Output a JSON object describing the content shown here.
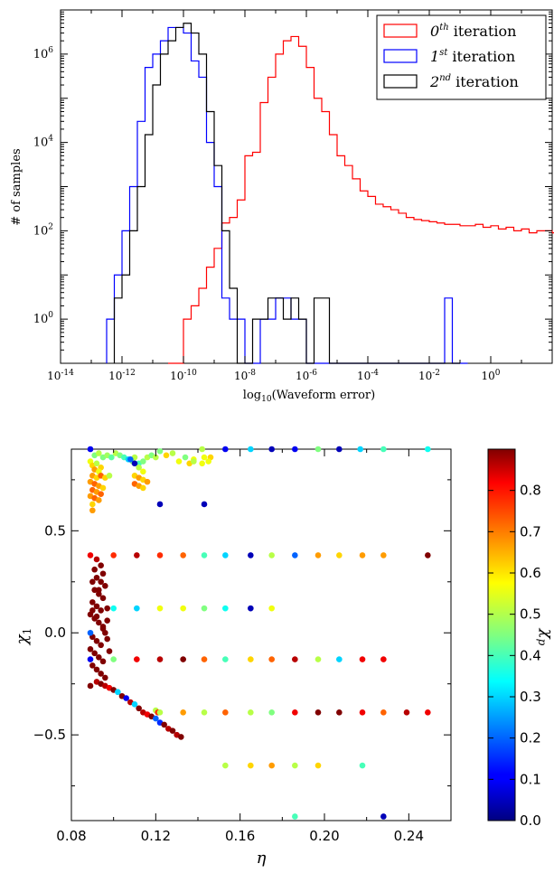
{
  "chart_data": [
    {
      "type": "line",
      "subtype": "step-histogram",
      "xlabel": "log10(Waveform error)",
      "xlabel_parts": {
        "base": "log",
        "sub": "10",
        "rest": "(Waveform error)"
      },
      "ylabel": "# of samples",
      "xscale": "log",
      "yscale": "log",
      "xlim": [
        1e-14,
        100.0
      ],
      "ylim": [
        0.1,
        10000000.0
      ],
      "x_ticks": [
        {
          "b": "10",
          "e": "-14"
        },
        {
          "b": "10",
          "e": "-12"
        },
        {
          "b": "10",
          "e": "-10"
        },
        {
          "b": "10",
          "e": "-8"
        },
        {
          "b": "10",
          "e": "-6"
        },
        {
          "b": "10",
          "e": "-4"
        },
        {
          "b": "10",
          "e": "-2"
        },
        {
          "b": "10",
          "e": "0"
        }
      ],
      "y_ticks": [
        {
          "b": "10",
          "e": "0"
        },
        {
          "b": "10",
          "e": "2"
        },
        {
          "b": "10",
          "e": "4"
        },
        {
          "b": "10",
          "e": "6"
        }
      ],
      "legend_position": "top-right",
      "bin_width_log10": 0.25,
      "series": [
        {
          "name": "0th iteration",
          "label": {
            "n": "0",
            "sup": "th",
            "rest": " iteration"
          },
          "color": "#ff0000",
          "start_log10": -10.5,
          "values": [
            0.1,
            0.1,
            1,
            2,
            5,
            15,
            40,
            150,
            200,
            500,
            5000,
            6000,
            80000,
            300000,
            1000000,
            2000000,
            2500000,
            1500000,
            500000,
            100000,
            50000,
            15000,
            5000,
            3000,
            1500,
            800,
            600,
            400,
            350,
            300,
            250,
            200,
            180,
            170,
            160,
            150,
            140,
            140,
            130,
            130,
            140,
            120,
            130,
            110,
            120,
            100,
            110,
            90,
            100,
            100,
            90,
            90,
            80,
            90,
            100,
            90,
            80,
            70,
            40,
            30,
            20,
            0.1
          ]
        },
        {
          "name": "1st iteration",
          "label": {
            "n": "1",
            "sup": "st",
            "rest": " iteration"
          },
          "color": "#0000ff",
          "start_log10": -12.5,
          "values": [
            1,
            10,
            100,
            1000,
            30000,
            500000,
            1000000,
            2000000,
            4000000,
            4000000,
            3000000,
            700000,
            300000,
            10000,
            1000,
            3,
            1,
            1,
            0.1,
            0.1,
            1,
            1,
            3,
            3,
            1,
            1,
            0.1,
            0.1,
            0.1,
            0.1,
            0.1,
            0.1,
            0.1,
            0.1,
            0.1,
            0.1,
            0.1,
            0.1,
            0.1,
            0.1,
            0.1,
            0.1,
            0.1,
            0.1,
            3,
            0.1,
            0.1
          ]
        },
        {
          "name": "2nd iteration",
          "label": {
            "n": "2",
            "sup": "nd",
            "rest": " iteration"
          },
          "color": "#000000",
          "start_log10": -12.25,
          "values": [
            3,
            10,
            100,
            1000,
            15000,
            200000,
            1000000,
            2000000,
            4000000,
            5000000,
            3000000,
            1000000,
            50000,
            3000,
            100,
            5,
            0.1,
            0.1,
            1,
            1,
            3,
            3,
            1,
            3,
            1,
            0.1,
            3,
            3,
            0.1,
            0.1,
            0.1,
            0.1,
            0.1,
            0.1,
            0.1,
            0.1,
            0.1,
            0.1,
            0.1,
            0.1,
            0.1,
            0.1,
            0.1,
            0.1,
            0.1
          ]
        }
      ]
    },
    {
      "type": "scatter",
      "xlabel": "η",
      "ylabel": "χ",
      "ylabel_sub": "1",
      "xlim": [
        0.08,
        0.26
      ],
      "ylim": [
        -0.92,
        0.9
      ],
      "x_ticks": [
        "0.08",
        "0.12",
        "0.16",
        "0.20",
        "0.24"
      ],
      "y_ticks": [
        "−0.5",
        "0.0",
        "0.5"
      ],
      "colorbar": {
        "label": "χ",
        "label_sub": "p",
        "range": [
          0.0,
          0.9
        ],
        "ticks": [
          "0.0",
          "0.1",
          "0.2",
          "0.3",
          "0.4",
          "0.5",
          "0.6",
          "0.7",
          "0.8"
        ],
        "colormap": "jet"
      },
      "points": [
        [
          0.089,
          0.9,
          0.1
        ],
        [
          0.091,
          0.87,
          0.45
        ],
        [
          0.093,
          0.88,
          0.5
        ],
        [
          0.095,
          0.86,
          0.45
        ],
        [
          0.097,
          0.87,
          0.48
        ],
        [
          0.099,
          0.86,
          0.42
        ],
        [
          0.101,
          0.88,
          0.5
        ],
        [
          0.103,
          0.87,
          0.45
        ],
        [
          0.105,
          0.86,
          0.4
        ],
        [
          0.107,
          0.85,
          0.3
        ],
        [
          0.109,
          0.84,
          0.45
        ],
        [
          0.11,
          0.86,
          0.5
        ],
        [
          0.112,
          0.83,
          0.4
        ],
        [
          0.114,
          0.84,
          0.45
        ],
        [
          0.116,
          0.86,
          0.5
        ],
        [
          0.118,
          0.87,
          0.45
        ],
        [
          0.12,
          0.86,
          0.5
        ],
        [
          0.122,
          0.89,
          0.45
        ],
        [
          0.125,
          0.87,
          0.6
        ],
        [
          0.128,
          0.88,
          0.5
        ],
        [
          0.134,
          0.86,
          0.45
        ],
        [
          0.138,
          0.85,
          0.55
        ],
        [
          0.142,
          0.9,
          0.5
        ],
        [
          0.143,
          0.86,
          0.55
        ],
        [
          0.146,
          0.86,
          0.6
        ],
        [
          0.153,
          0.9,
          0.1
        ],
        [
          0.165,
          0.9,
          0.3
        ],
        [
          0.175,
          0.9,
          0.05
        ],
        [
          0.186,
          0.9,
          0.1
        ],
        [
          0.197,
          0.9,
          0.45
        ],
        [
          0.207,
          0.9,
          0.05
        ],
        [
          0.217,
          0.9,
          0.3
        ],
        [
          0.228,
          0.9,
          0.4
        ],
        [
          0.249,
          0.9,
          0.35
        ],
        [
          0.136,
          0.83,
          0.6
        ],
        [
          0.138,
          0.84,
          0.5
        ],
        [
          0.142,
          0.83,
          0.55
        ],
        [
          0.145,
          0.84,
          0.55
        ],
        [
          0.131,
          0.84,
          0.55
        ],
        [
          0.089,
          0.84,
          0.55
        ],
        [
          0.09,
          0.82,
          0.6
        ],
        [
          0.092,
          0.83,
          0.5
        ],
        [
          0.094,
          0.81,
          0.6
        ],
        [
          0.091,
          0.8,
          0.65
        ],
        [
          0.093,
          0.79,
          0.55
        ],
        [
          0.09,
          0.77,
          0.65
        ],
        [
          0.092,
          0.76,
          0.6
        ],
        [
          0.094,
          0.77,
          0.7
        ],
        [
          0.096,
          0.76,
          0.6
        ],
        [
          0.098,
          0.77,
          0.5
        ],
        [
          0.089,
          0.74,
          0.65
        ],
        [
          0.091,
          0.73,
          0.7
        ],
        [
          0.093,
          0.72,
          0.65
        ],
        [
          0.095,
          0.71,
          0.6
        ],
        [
          0.09,
          0.7,
          0.7
        ],
        [
          0.092,
          0.69,
          0.65
        ],
        [
          0.094,
          0.68,
          0.7
        ],
        [
          0.089,
          0.67,
          0.65
        ],
        [
          0.091,
          0.66,
          0.7
        ],
        [
          0.093,
          0.65,
          0.65
        ],
        [
          0.09,
          0.63,
          0.6
        ],
        [
          0.09,
          0.6,
          0.65
        ],
        [
          0.108,
          0.85,
          0.2
        ],
        [
          0.11,
          0.83,
          0.05
        ],
        [
          0.112,
          0.81,
          0.5
        ],
        [
          0.114,
          0.79,
          0.55
        ],
        [
          0.11,
          0.77,
          0.6
        ],
        [
          0.112,
          0.76,
          0.65
        ],
        [
          0.114,
          0.75,
          0.6
        ],
        [
          0.116,
          0.74,
          0.65
        ],
        [
          0.11,
          0.73,
          0.7
        ],
        [
          0.112,
          0.72,
          0.65
        ],
        [
          0.114,
          0.71,
          0.6
        ],
        [
          0.122,
          0.63,
          0.05
        ],
        [
          0.143,
          0.63,
          0.05
        ],
        [
          0.089,
          0.38,
          0.8
        ],
        [
          0.092,
          0.36,
          0.85
        ],
        [
          0.094,
          0.33,
          0.9
        ],
        [
          0.091,
          0.31,
          0.9
        ],
        [
          0.095,
          0.29,
          0.9
        ],
        [
          0.092,
          0.27,
          0.9
        ],
        [
          0.094,
          0.25,
          0.9
        ],
        [
          0.096,
          0.23,
          0.9
        ],
        [
          0.091,
          0.21,
          0.9
        ],
        [
          0.093,
          0.19,
          0.9
        ],
        [
          0.095,
          0.17,
          0.9
        ],
        [
          0.09,
          0.15,
          0.9
        ],
        [
          0.092,
          0.13,
          0.9
        ],
        [
          0.094,
          0.11,
          0.9
        ],
        [
          0.089,
          0.09,
          0.9
        ],
        [
          0.091,
          0.07,
          0.9
        ],
        [
          0.093,
          0.05,
          0.9
        ],
        [
          0.095,
          0.03,
          0.9
        ],
        [
          0.097,
          0.06,
          0.9
        ],
        [
          0.096,
          0.0,
          0.9
        ],
        [
          0.09,
          -0.02,
          0.9
        ],
        [
          0.092,
          -0.04,
          0.9
        ],
        [
          0.094,
          -0.06,
          0.9
        ],
        [
          0.089,
          -0.08,
          0.9
        ],
        [
          0.091,
          -0.1,
          0.9
        ],
        [
          0.093,
          -0.12,
          0.9
        ],
        [
          0.095,
          -0.14,
          0.9
        ],
        [
          0.09,
          -0.16,
          0.9
        ],
        [
          0.092,
          -0.18,
          0.9
        ],
        [
          0.094,
          -0.2,
          0.9
        ],
        [
          0.096,
          -0.22,
          0.9
        ],
        [
          0.09,
          0.25,
          0.9
        ],
        [
          0.093,
          0.21,
          0.9
        ],
        [
          0.097,
          0.12,
          0.9
        ],
        [
          0.09,
          0.11,
          0.9
        ],
        [
          0.092,
          0.08,
          0.9
        ],
        [
          0.095,
          0.02,
          0.9
        ],
        [
          0.097,
          -0.03,
          0.9
        ],
        [
          0.098,
          -0.09,
          0.9
        ],
        [
          0.089,
          0.0,
          0.2
        ],
        [
          0.089,
          -0.13,
          0.1
        ],
        [
          0.089,
          -0.26,
          0.9
        ],
        [
          0.092,
          -0.24,
          0.85
        ],
        [
          0.094,
          -0.25,
          0.9
        ],
        [
          0.096,
          -0.26,
          0.85
        ],
        [
          0.098,
          -0.27,
          0.8
        ],
        [
          0.1,
          -0.28,
          0.9
        ],
        [
          0.102,
          -0.29,
          0.3
        ],
        [
          0.104,
          -0.31,
          0.9
        ],
        [
          0.106,
          -0.32,
          0.1
        ],
        [
          0.108,
          -0.34,
          0.85
        ],
        [
          0.11,
          -0.35,
          0.3
        ],
        [
          0.112,
          -0.37,
          0.9
        ],
        [
          0.114,
          -0.39,
          0.85
        ],
        [
          0.116,
          -0.4,
          0.8
        ],
        [
          0.118,
          -0.41,
          0.9
        ],
        [
          0.12,
          -0.42,
          0.2
        ],
        [
          0.122,
          -0.44,
          0.15
        ],
        [
          0.124,
          -0.45,
          0.9
        ],
        [
          0.126,
          -0.47,
          0.85
        ],
        [
          0.128,
          -0.48,
          0.9
        ],
        [
          0.13,
          -0.5,
          0.85
        ],
        [
          0.132,
          -0.51,
          0.9
        ],
        [
          0.12,
          -0.38,
          0.5
        ],
        [
          0.121,
          -0.39,
          0.75
        ],
        [
          0.1,
          0.38,
          0.75
        ],
        [
          0.111,
          0.38,
          0.85
        ],
        [
          0.122,
          0.38,
          0.75
        ],
        [
          0.133,
          0.38,
          0.7
        ],
        [
          0.143,
          0.38,
          0.4
        ],
        [
          0.153,
          0.38,
          0.3
        ],
        [
          0.165,
          0.38,
          0.05
        ],
        [
          0.175,
          0.38,
          0.5
        ],
        [
          0.186,
          0.38,
          0.2
        ],
        [
          0.197,
          0.38,
          0.65
        ],
        [
          0.207,
          0.38,
          0.6
        ],
        [
          0.218,
          0.38,
          0.65
        ],
        [
          0.228,
          0.38,
          0.65
        ],
        [
          0.249,
          0.38,
          0.9
        ],
        [
          0.1,
          0.12,
          0.35
        ],
        [
          0.111,
          0.12,
          0.3
        ],
        [
          0.122,
          0.12,
          0.55
        ],
        [
          0.133,
          0.12,
          0.55
        ],
        [
          0.143,
          0.12,
          0.45
        ],
        [
          0.153,
          0.12,
          0.35
        ],
        [
          0.165,
          0.12,
          0.05
        ],
        [
          0.175,
          0.12,
          0.55
        ],
        [
          0.1,
          -0.13,
          0.45
        ],
        [
          0.111,
          -0.13,
          0.8
        ],
        [
          0.122,
          -0.13,
          0.85
        ],
        [
          0.133,
          -0.13,
          0.9
        ],
        [
          0.143,
          -0.13,
          0.7
        ],
        [
          0.153,
          -0.13,
          0.4
        ],
        [
          0.165,
          -0.13,
          0.6
        ],
        [
          0.175,
          -0.13,
          0.7
        ],
        [
          0.186,
          -0.13,
          0.85
        ],
        [
          0.197,
          -0.13,
          0.5
        ],
        [
          0.207,
          -0.13,
          0.3
        ],
        [
          0.218,
          -0.13,
          0.8
        ],
        [
          0.228,
          -0.13,
          0.8
        ],
        [
          0.122,
          -0.39,
          0.5
        ],
        [
          0.133,
          -0.39,
          0.65
        ],
        [
          0.143,
          -0.39,
          0.5
        ],
        [
          0.153,
          -0.39,
          0.7
        ],
        [
          0.165,
          -0.39,
          0.5
        ],
        [
          0.175,
          -0.39,
          0.45
        ],
        [
          0.186,
          -0.39,
          0.8
        ],
        [
          0.197,
          -0.39,
          0.9
        ],
        [
          0.207,
          -0.39,
          0.9
        ],
        [
          0.218,
          -0.39,
          0.8
        ],
        [
          0.228,
          -0.39,
          0.7
        ],
        [
          0.239,
          -0.39,
          0.85
        ],
        [
          0.249,
          -0.39,
          0.8
        ],
        [
          0.153,
          -0.65,
          0.5
        ],
        [
          0.165,
          -0.65,
          0.6
        ],
        [
          0.175,
          -0.65,
          0.65
        ],
        [
          0.186,
          -0.65,
          0.5
        ],
        [
          0.197,
          -0.65,
          0.6
        ],
        [
          0.218,
          -0.65,
          0.4
        ],
        [
          0.186,
          -0.9,
          0.4
        ],
        [
          0.228,
          -0.9,
          0.05
        ]
      ]
    }
  ]
}
